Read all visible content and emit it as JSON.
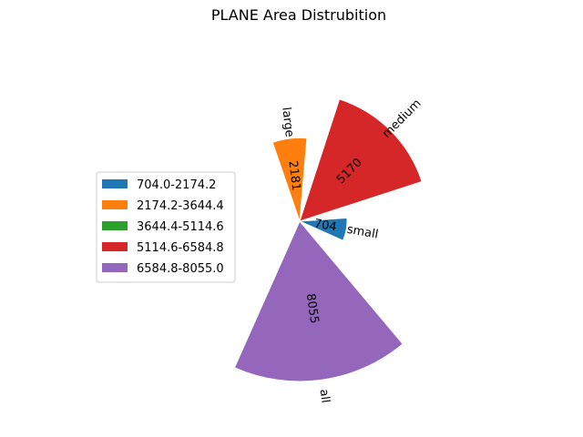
{
  "chart_data": {
    "type": "polar-bar",
    "title": "PLANE Area Distrubition",
    "categories": [
      "small",
      "large",
      "medium",
      "all"
    ],
    "values": [
      704,
      2181,
      5170,
      8055
    ],
    "value_labels": [
      "704",
      "2181",
      "5170",
      "8055"
    ],
    "colors": [
      "#1f77b4",
      "#ff7f0e",
      "#d62728",
      "#9467bd"
    ],
    "legend_placement": "left",
    "legend": [
      {
        "label": "704.0-2174.2",
        "color": "#1f77b4"
      },
      {
        "label": "2174.2-3644.4",
        "color": "#ff7f0e"
      },
      {
        "label": "3644.4-5114.6",
        "color": "#2ca02c"
      },
      {
        "label": "5114.6-6584.8",
        "color": "#d62728"
      },
      {
        "label": "6584.8-8055.0",
        "color": "#9467bd"
      }
    ]
  }
}
